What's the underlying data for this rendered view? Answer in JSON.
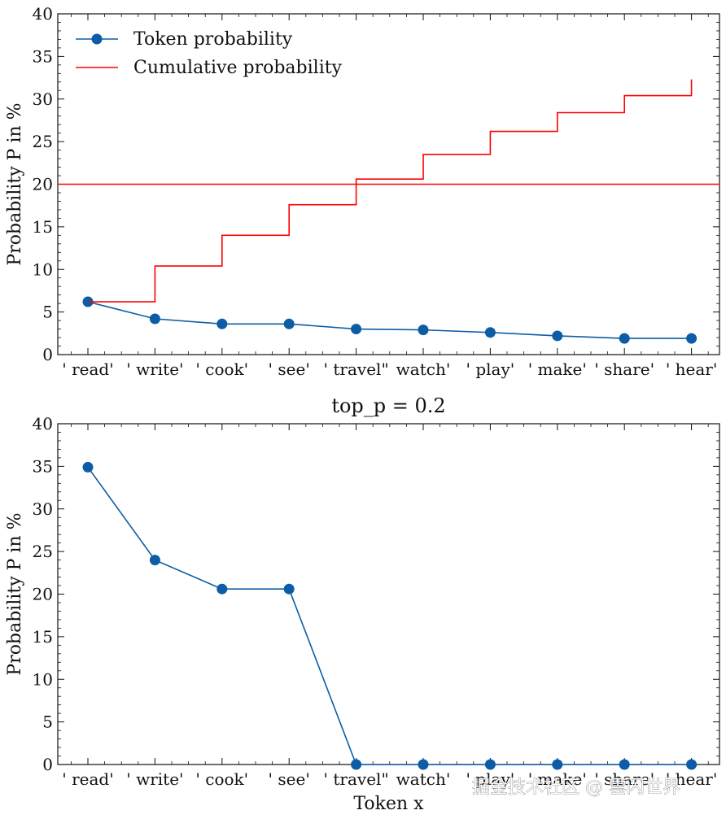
{
  "chart_data": [
    {
      "type": "line",
      "title": "",
      "xlabel": "",
      "ylabel": "Probability P in %",
      "ylim": [
        0,
        40
      ],
      "yticks": [
        0,
        5,
        10,
        15,
        20,
        25,
        30,
        35,
        40
      ],
      "categories": [
        "' read'",
        "' write'",
        "' cook'",
        "' see'",
        "' travel\"",
        "watch'",
        "' play'",
        "' make'",
        "' share'",
        "' hear'"
      ],
      "series": [
        {
          "name": "Token probability",
          "style": "line-marker",
          "color": "#0C5DA5",
          "values": [
            6.2,
            4.2,
            3.6,
            3.6,
            3.0,
            2.9,
            2.6,
            2.2,
            1.9,
            1.9
          ]
        },
        {
          "name": "Cumulative probability",
          "style": "step",
          "color": "#FF0000",
          "values": [
            6.2,
            10.4,
            14.0,
            17.6,
            20.6,
            23.5,
            26.2,
            28.4,
            30.4,
            32.3
          ]
        }
      ],
      "threshold": {
        "value": 20,
        "color": "#FF0000"
      },
      "legend": {
        "position": "top-left",
        "entries": [
          "Token probability",
          "Cumulative probability"
        ]
      }
    },
    {
      "type": "line",
      "title": "top_p = 0.2",
      "xlabel": "Token x",
      "ylabel": "Probability P in %",
      "ylim": [
        0,
        40
      ],
      "yticks": [
        0,
        5,
        10,
        15,
        20,
        25,
        30,
        35,
        40
      ],
      "categories": [
        "' read'",
        "' write'",
        "' cook'",
        "' see'",
        "' travel\"",
        "watch'",
        "' play'",
        "' make'",
        "' share'",
        "' hear'"
      ],
      "series": [
        {
          "name": "Token probability",
          "style": "line-marker",
          "color": "#0C5DA5",
          "values": [
            34.9,
            24.0,
            20.6,
            20.6,
            0,
            0,
            0,
            0,
            0,
            0
          ]
        }
      ]
    }
  ],
  "watermark": "掘金技术社区 @ 雲闪世界"
}
